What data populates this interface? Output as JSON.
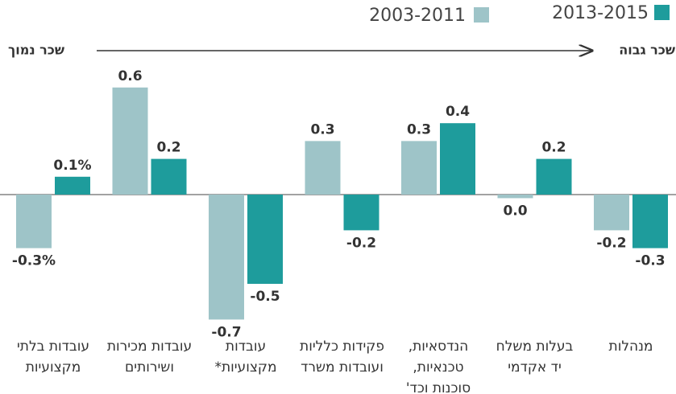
{
  "chart_data": {
    "type": "bar",
    "low_label": "שכר נמוך",
    "high_label": "שכר גבוה",
    "categories": [
      [
        "מנהלות"
      ],
      [
        "בעלות משלח",
        "יד אקדמי"
      ],
      [
        "הנדסאיות,",
        "טכנאיות,",
        "סוכנות וכד'"
      ],
      [
        "פקידות כלליות",
        "ועובדות משרד"
      ],
      [
        "עובדות",
        "מקצועיות*"
      ],
      [
        "עובדות מכירות",
        "ושירותים"
      ],
      [
        "עובדות בלתי",
        "מקצועיות"
      ]
    ],
    "series": [
      {
        "name": "2003-2011",
        "color": "#9ec4c8",
        "values": [
          -0.2,
          -0.02,
          0.3,
          0.3,
          -0.7,
          0.6,
          -0.3
        ],
        "value_labels": [
          "-0.2",
          "0.0",
          "0.3",
          "0.3",
          "-0.7",
          "0.6",
          "-0.3%"
        ]
      },
      {
        "name": "2013-2015",
        "color": "#1e9c9c",
        "values": [
          -0.3,
          0.2,
          0.4,
          -0.2,
          -0.5,
          0.2,
          0.1
        ],
        "value_labels": [
          "-0.3",
          "0.2",
          "0.4",
          "-0.2",
          "-0.5",
          "0.2",
          "0.1%"
        ]
      }
    ]
  }
}
